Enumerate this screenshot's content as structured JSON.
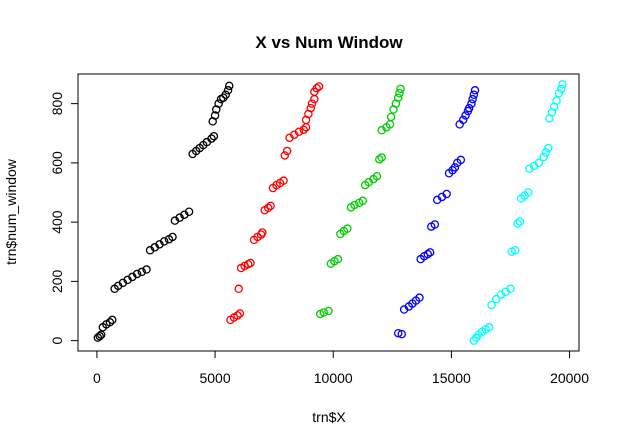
{
  "chart_data": {
    "type": "scatter",
    "title": "X vs Num Window",
    "xlabel": "trn$X",
    "ylabel": "trn$num_window",
    "xlim": [
      -800,
      20400
    ],
    "ylim": [
      -35,
      900
    ],
    "xticks": [
      "0",
      "5000",
      "10000",
      "15000",
      "20000"
    ],
    "yticks": [
      "0",
      "200",
      "400",
      "600",
      "800"
    ],
    "xtick_values": [
      0,
      5000,
      10000,
      15000,
      20000
    ],
    "ytick_values": [
      0,
      200,
      400,
      600,
      800
    ],
    "marker": "open-circle",
    "grid": false,
    "legend": "none",
    "series": [
      {
        "color": "#000000",
        "points": [
          [
            40,
            10
          ],
          [
            120,
            15
          ],
          [
            180,
            20
          ],
          [
            250,
            45
          ],
          [
            400,
            55
          ],
          [
            550,
            62
          ],
          [
            650,
            70
          ],
          [
            750,
            175
          ],
          [
            900,
            185
          ],
          [
            1100,
            195
          ],
          [
            1300,
            205
          ],
          [
            1500,
            215
          ],
          [
            1700,
            225
          ],
          [
            1900,
            232
          ],
          [
            2100,
            240
          ],
          [
            2250,
            305
          ],
          [
            2450,
            315
          ],
          [
            2650,
            325
          ],
          [
            2850,
            335
          ],
          [
            3050,
            342
          ],
          [
            3200,
            350
          ],
          [
            3300,
            405
          ],
          [
            3500,
            415
          ],
          [
            3700,
            425
          ],
          [
            3900,
            435
          ],
          [
            4050,
            630
          ],
          [
            4200,
            640
          ],
          [
            4350,
            650
          ],
          [
            4500,
            660
          ],
          [
            4650,
            670
          ],
          [
            4850,
            682
          ],
          [
            4950,
            690
          ],
          [
            4900,
            740
          ],
          [
            5000,
            760
          ],
          [
            5050,
            780
          ],
          [
            5150,
            800
          ],
          [
            5250,
            815
          ],
          [
            5350,
            820
          ],
          [
            5450,
            830
          ],
          [
            5550,
            845
          ],
          [
            5600,
            860
          ]
        ]
      },
      {
        "color": "#ff0000",
        "points": [
          [
            5650,
            70
          ],
          [
            5800,
            78
          ],
          [
            5950,
            85
          ],
          [
            6050,
            92
          ],
          [
            6000,
            175
          ],
          [
            6100,
            245
          ],
          [
            6250,
            252
          ],
          [
            6400,
            258
          ],
          [
            6500,
            262
          ],
          [
            6650,
            340
          ],
          [
            6800,
            350
          ],
          [
            6950,
            358
          ],
          [
            7000,
            365
          ],
          [
            7100,
            440
          ],
          [
            7250,
            448
          ],
          [
            7350,
            455
          ],
          [
            7450,
            515
          ],
          [
            7600,
            525
          ],
          [
            7750,
            532
          ],
          [
            7900,
            540
          ],
          [
            7950,
            625
          ],
          [
            8050,
            640
          ],
          [
            8150,
            685
          ],
          [
            8350,
            695
          ],
          [
            8550,
            705
          ],
          [
            8750,
            712
          ],
          [
            8850,
            720
          ],
          [
            8850,
            745
          ],
          [
            8950,
            765
          ],
          [
            9050,
            785
          ],
          [
            9100,
            800
          ],
          [
            9200,
            815
          ],
          [
            9200,
            840
          ],
          [
            9300,
            852
          ],
          [
            9400,
            858
          ]
        ]
      },
      {
        "color": "#00cd00",
        "points": [
          [
            9450,
            90
          ],
          [
            9600,
            95
          ],
          [
            9800,
            100
          ],
          [
            9900,
            260
          ],
          [
            10050,
            268
          ],
          [
            10200,
            275
          ],
          [
            10300,
            360
          ],
          [
            10450,
            370
          ],
          [
            10600,
            378
          ],
          [
            10750,
            450
          ],
          [
            10900,
            458
          ],
          [
            11100,
            465
          ],
          [
            11250,
            472
          ],
          [
            11350,
            525
          ],
          [
            11500,
            535
          ],
          [
            11700,
            545
          ],
          [
            11850,
            555
          ],
          [
            11950,
            612
          ],
          [
            12050,
            618
          ],
          [
            12050,
            710
          ],
          [
            12250,
            720
          ],
          [
            12400,
            730
          ],
          [
            12450,
            755
          ],
          [
            12550,
            780
          ],
          [
            12650,
            800
          ],
          [
            12750,
            820
          ],
          [
            12800,
            835
          ],
          [
            12850,
            850
          ]
        ]
      },
      {
        "color": "#0000ff",
        "points": [
          [
            12750,
            25
          ],
          [
            12900,
            22
          ],
          [
            13000,
            105
          ],
          [
            13200,
            115
          ],
          [
            13350,
            125
          ],
          [
            13500,
            135
          ],
          [
            13650,
            145
          ],
          [
            13700,
            275
          ],
          [
            13850,
            285
          ],
          [
            14000,
            292
          ],
          [
            14100,
            298
          ],
          [
            14150,
            385
          ],
          [
            14300,
            392
          ],
          [
            14400,
            475
          ],
          [
            14600,
            485
          ],
          [
            14800,
            495
          ],
          [
            14900,
            565
          ],
          [
            15050,
            575
          ],
          [
            15150,
            585
          ],
          [
            15250,
            600
          ],
          [
            15400,
            610
          ],
          [
            15350,
            730
          ],
          [
            15500,
            745
          ],
          [
            15600,
            760
          ],
          [
            15700,
            775
          ],
          [
            15750,
            785
          ],
          [
            15850,
            800
          ],
          [
            15900,
            815
          ],
          [
            15950,
            830
          ],
          [
            16000,
            845
          ]
        ]
      },
      {
        "color": "#00ffff",
        "points": [
          [
            15950,
            0
          ],
          [
            16050,
            10
          ],
          [
            16150,
            20
          ],
          [
            16300,
            30
          ],
          [
            16450,
            38
          ],
          [
            16600,
            45
          ],
          [
            16700,
            120
          ],
          [
            16900,
            140
          ],
          [
            17100,
            155
          ],
          [
            17300,
            165
          ],
          [
            17500,
            175
          ],
          [
            17550,
            300
          ],
          [
            17700,
            305
          ],
          [
            17800,
            395
          ],
          [
            17900,
            402
          ],
          [
            17950,
            480
          ],
          [
            18100,
            490
          ],
          [
            18250,
            500
          ],
          [
            18300,
            580
          ],
          [
            18500,
            590
          ],
          [
            18700,
            600
          ],
          [
            18900,
            620
          ],
          [
            19000,
            635
          ],
          [
            19100,
            650
          ],
          [
            19150,
            750
          ],
          [
            19250,
            770
          ],
          [
            19350,
            790
          ],
          [
            19450,
            810
          ],
          [
            19550,
            835
          ],
          [
            19650,
            850
          ],
          [
            19700,
            865
          ]
        ]
      }
    ]
  }
}
